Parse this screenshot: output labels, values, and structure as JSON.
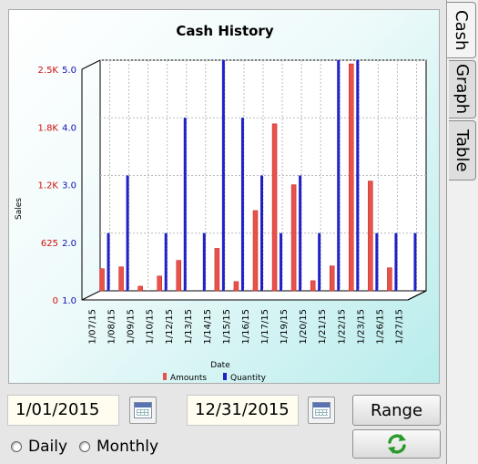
{
  "tabs": [
    {
      "label": "Cash",
      "active": true
    },
    {
      "label": "Graph",
      "active": false
    },
    {
      "label": "Table",
      "active": false
    }
  ],
  "controls": {
    "start_date": "1/01/2015",
    "end_date": "12/31/2015",
    "range_label": "Range",
    "daily_label": "Daily",
    "monthly_label": "Monthly",
    "refresh_icon": "refresh-icon",
    "calendar_icon": "calendar-icon"
  },
  "colors": {
    "amounts": "#e8524a",
    "quantity": "#2020c8",
    "left_axis": "#d01010",
    "right_axis": "#1010b0"
  },
  "chart_data": {
    "type": "bar",
    "title": "Cash History",
    "xlabel": "Date",
    "ylabel": "Sales",
    "categories": [
      "1/07/15",
      "1/08/15",
      "1/09/15",
      "1/10/15",
      "1/12/15",
      "1/13/15",
      "1/14/15",
      "1/15/15",
      "1/16/15",
      "1/17/15",
      "1/19/15",
      "1/20/15",
      "1/21/15",
      "1/22/15",
      "1/23/15",
      "1/26/15",
      "1/27/15"
    ],
    "y_left_ticks": [
      "0",
      "625",
      "1.2K",
      "1.8K",
      "2.5K"
    ],
    "y_left_range": [
      0,
      2500
    ],
    "y_right_ticks": [
      "1.0",
      "2.0",
      "3.0",
      "4.0",
      "5.0"
    ],
    "y_right_range": [
      1,
      5
    ],
    "series": [
      {
        "name": "Amounts",
        "axis": "left",
        "values": [
          240,
          260,
          50,
          160,
          330,
          0,
          460,
          100,
          870,
          1810,
          1150,
          110,
          270,
          2460,
          1190,
          250,
          0
        ]
      },
      {
        "name": "Quantity",
        "axis": "right",
        "values": [
          2,
          3,
          1,
          2,
          4,
          2,
          5,
          4,
          3,
          2,
          3,
          2,
          5,
          5,
          2,
          2,
          2
        ]
      }
    ],
    "legend_position": "bottom",
    "grid": true
  }
}
